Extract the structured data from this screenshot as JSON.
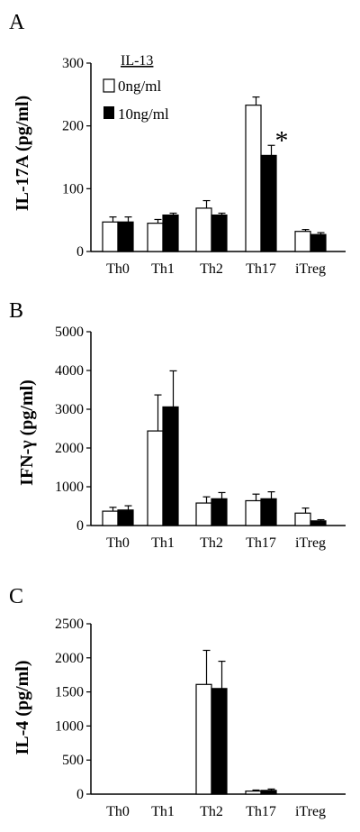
{
  "legend": {
    "title": "IL-13",
    "entries": [
      {
        "label": "0ng/ml",
        "fill": "#ffffff"
      },
      {
        "label": "10ng/ml",
        "fill": "#000000"
      }
    ]
  },
  "chart_data": [
    {
      "panel": "A",
      "type": "bar",
      "ylabel": "IL-17A (pg/ml)",
      "categories": [
        "Th0",
        "Th1",
        "Th2",
        "Th17",
        "iTreg"
      ],
      "ylim": [
        0,
        300
      ],
      "yticks": [
        "0",
        "100",
        "200",
        "300"
      ],
      "series": [
        {
          "values": [
            47,
            45,
            69,
            233,
            32
          ],
          "errors": [
            8,
            6,
            12,
            13,
            3
          ]
        },
        {
          "values": [
            47,
            58,
            58,
            153,
            27
          ],
          "errors": [
            8,
            3,
            3,
            16,
            3
          ]
        }
      ],
      "annotation": {
        "text": "*",
        "category": "Th17"
      }
    },
    {
      "panel": "B",
      "type": "bar",
      "ylabel": "IFN-γ (pg/ml)",
      "categories": [
        "Th0",
        "Th1",
        "Th2",
        "Th17",
        "iTreg"
      ],
      "ylim": [
        0,
        5000
      ],
      "yticks": [
        "0",
        "1000",
        "2000",
        "3000",
        "4000",
        "5000"
      ],
      "series": [
        {
          "values": [
            370,
            2440,
            580,
            640,
            320
          ],
          "errors": [
            100,
            930,
            160,
            170,
            130
          ]
        },
        {
          "values": [
            400,
            3060,
            690,
            690,
            120
          ],
          "errors": [
            110,
            930,
            160,
            180,
            30
          ]
        }
      ]
    },
    {
      "panel": "C",
      "type": "bar",
      "ylabel": "IL-4 (pg/ml)",
      "categories": [
        "Th0",
        "Th1",
        "Th2",
        "Th17",
        "iTreg"
      ],
      "ylim": [
        0,
        2500
      ],
      "yticks": [
        "0",
        "500",
        "1000",
        "1500",
        "2000",
        "2500"
      ],
      "series": [
        {
          "values": [
            0,
            0,
            1610,
            45,
            0
          ],
          "errors": [
            0,
            0,
            500,
            15,
            0
          ]
        },
        {
          "values": [
            0,
            0,
            1550,
            55,
            0
          ],
          "errors": [
            0,
            0,
            400,
            20,
            0
          ]
        }
      ]
    }
  ]
}
